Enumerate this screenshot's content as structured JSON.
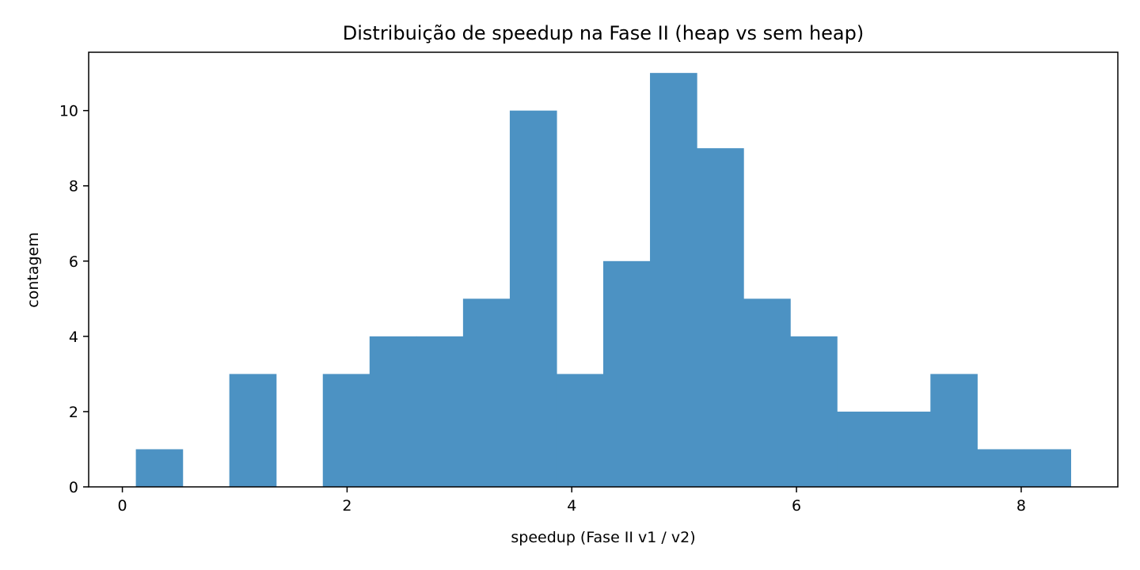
{
  "chart_data": {
    "type": "bar",
    "title": "Distribuição de speedup na Fase II (heap vs sem heap)",
    "xlabel": "speedup (Fase II v1 / v2)",
    "ylabel": "contagem",
    "bar_color": "#4c92c3",
    "bin_edges": [
      0.12,
      0.536,
      0.952,
      1.368,
      1.784,
      2.2,
      2.616,
      3.032,
      3.448,
      3.864,
      4.28,
      4.696,
      5.112,
      5.528,
      5.944,
      6.36,
      6.776,
      7.192,
      7.608,
      8.024,
      8.44
    ],
    "values": [
      1,
      0,
      3,
      0,
      3,
      4,
      4,
      5,
      10,
      3,
      6,
      11,
      9,
      5,
      4,
      2,
      2,
      3,
      1,
      1
    ],
    "xlim": [
      -0.3,
      8.86
    ],
    "ylim": [
      0,
      11.55
    ],
    "xticks": [
      0,
      2,
      4,
      6,
      8
    ],
    "yticks": [
      0,
      2,
      4,
      6,
      8,
      10
    ],
    "grid": false,
    "legend": "none"
  }
}
